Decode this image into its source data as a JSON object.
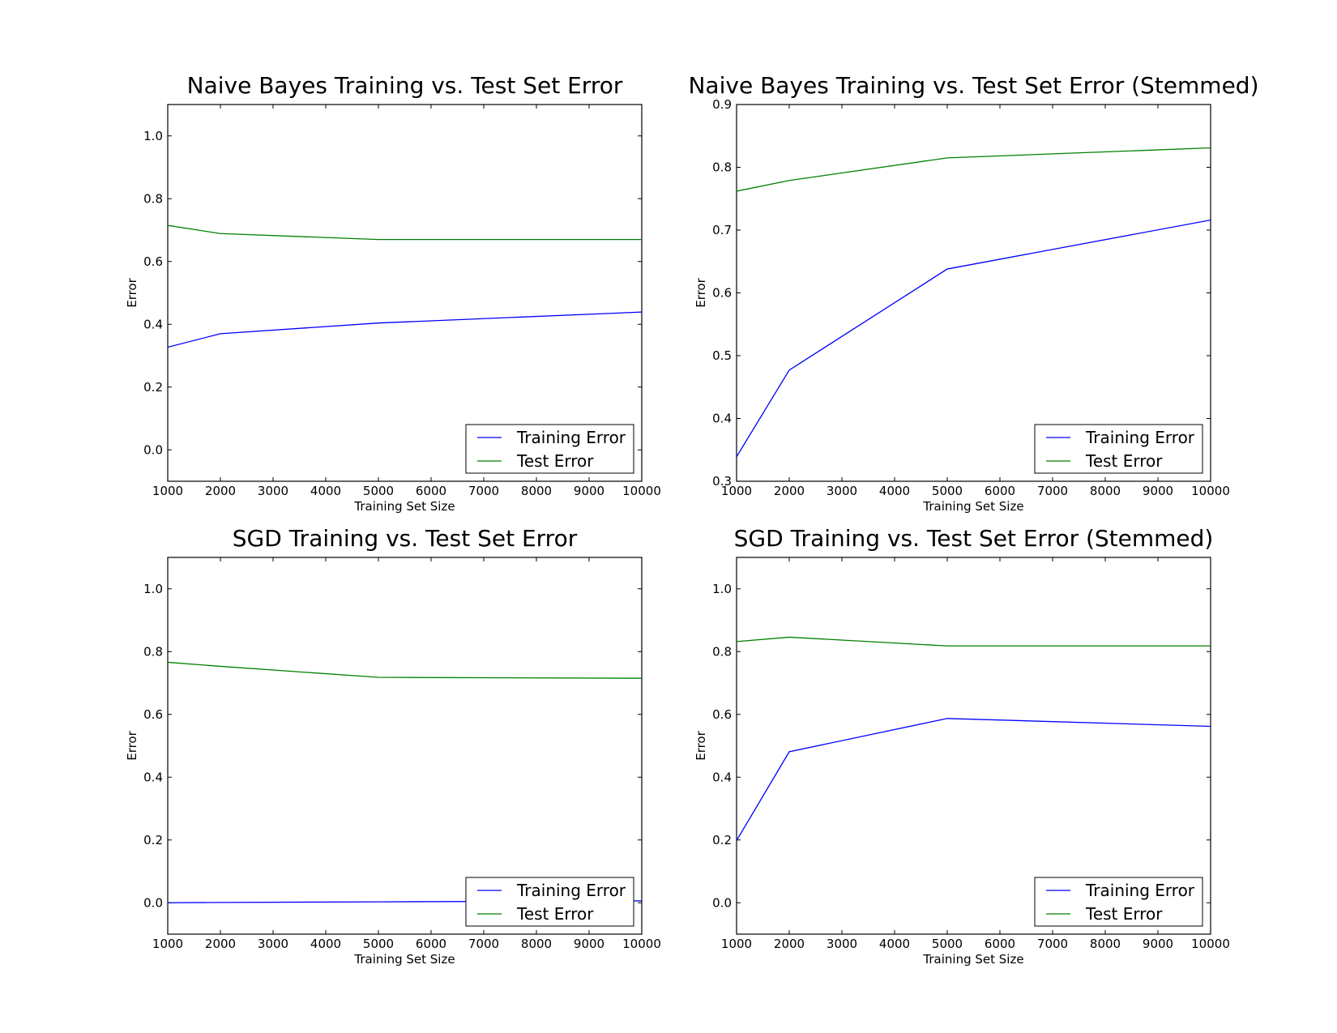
{
  "colors": {
    "training": "#0000ff",
    "test": "#008000"
  },
  "chart_data": [
    {
      "type": "line",
      "title": "Naive Bayes Training vs. Test Set Error",
      "xlabel": "Training Set Size",
      "ylabel": "Error",
      "xlim": [
        1000,
        10000
      ],
      "ylim": [
        -0.1,
        1.1
      ],
      "xticks": [
        "1000",
        "2000",
        "3000",
        "4000",
        "5000",
        "6000",
        "7000",
        "8000",
        "9000",
        "10000"
      ],
      "yticks": [
        "0.0",
        "0.2",
        "0.4",
        "0.6",
        "0.8",
        "1.0"
      ],
      "legend": "lower-right",
      "x": [
        1000,
        2000,
        5000,
        10000
      ],
      "series": [
        {
          "name": "Training Error",
          "values": [
            0.327,
            0.37,
            0.404,
            0.439
          ]
        },
        {
          "name": "Test Error",
          "values": [
            0.715,
            0.689,
            0.67,
            0.67
          ]
        }
      ]
    },
    {
      "type": "line",
      "title": "Naive Bayes Training vs. Test Set Error (Stemmed)",
      "xlabel": "Training Set Size",
      "ylabel": "Error",
      "xlim": [
        1000,
        10000
      ],
      "ylim": [
        0.3,
        0.9
      ],
      "xticks": [
        "1000",
        "2000",
        "3000",
        "4000",
        "5000",
        "6000",
        "7000",
        "8000",
        "9000",
        "10000"
      ],
      "yticks": [
        "0.3",
        "0.4",
        "0.5",
        "0.6",
        "0.7",
        "0.8",
        "0.9"
      ],
      "legend": "lower-right",
      "x": [
        1000,
        2000,
        5000,
        10000
      ],
      "series": [
        {
          "name": "Training Error",
          "values": [
            0.339,
            0.477,
            0.638,
            0.716
          ]
        },
        {
          "name": "Test Error",
          "values": [
            0.762,
            0.779,
            0.815,
            0.831
          ]
        }
      ]
    },
    {
      "type": "line",
      "title": "SGD Training vs. Test Set Error",
      "xlabel": "Training Set Size",
      "ylabel": "Error",
      "xlim": [
        1000,
        10000
      ],
      "ylim": [
        -0.1,
        1.1
      ],
      "xticks": [
        "1000",
        "2000",
        "3000",
        "4000",
        "5000",
        "6000",
        "7000",
        "8000",
        "9000",
        "10000"
      ],
      "yticks": [
        "0.0",
        "0.2",
        "0.4",
        "0.6",
        "0.8",
        "1.0"
      ],
      "legend": "lower-right",
      "x": [
        1000,
        2000,
        5000,
        10000
      ],
      "series": [
        {
          "name": "Training Error",
          "values": [
            0.0,
            0.001,
            0.003,
            0.006
          ]
        },
        {
          "name": "Test Error",
          "values": [
            0.766,
            0.753,
            0.718,
            0.715
          ]
        }
      ]
    },
    {
      "type": "line",
      "title": "SGD Training vs. Test Set Error (Stemmed)",
      "xlabel": "Training Set Size",
      "ylabel": "Error",
      "xlim": [
        1000,
        10000
      ],
      "ylim": [
        -0.1,
        1.1
      ],
      "xticks": [
        "1000",
        "2000",
        "3000",
        "4000",
        "5000",
        "6000",
        "7000",
        "8000",
        "9000",
        "10000"
      ],
      "yticks": [
        "0.0",
        "0.2",
        "0.4",
        "0.6",
        "0.8",
        "1.0"
      ],
      "legend": "lower-right",
      "x": [
        1000,
        2000,
        5000,
        10000
      ],
      "series": [
        {
          "name": "Training Error",
          "values": [
            0.198,
            0.481,
            0.587,
            0.562
          ]
        },
        {
          "name": "Test Error",
          "values": [
            0.832,
            0.846,
            0.818,
            0.818
          ]
        }
      ]
    }
  ]
}
